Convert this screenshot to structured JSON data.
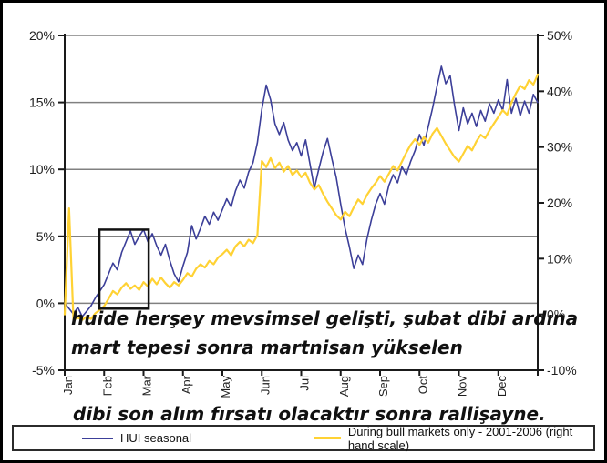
{
  "colors": {
    "blue_series": "#3c3f99",
    "yellow_series": "#ffd234",
    "gridline": "#808080",
    "axis": "#1a1a1a",
    "highlight_box": "#111111",
    "background": "#ffffff"
  },
  "annotations": {
    "line1": "huide herşey mevsimsel gelişti, şubat dibi ardına",
    "line2": "mart tepesi sonra martnisan yükselen",
    "line3": "dibi son alım fırsatı olacaktır sonra rallişayne."
  },
  "legend": {
    "items": [
      {
        "label": "HUI seasonal",
        "color": "#3c3f99"
      },
      {
        "label": "During bull markets only - 2001-2006 (right hand scale)",
        "color": "#ffd234"
      }
    ]
  },
  "chart_data": {
    "type": "line",
    "title": "",
    "xlabel": "",
    "ylabel_left": "",
    "ylabel_right": "",
    "grid": true,
    "legend_position": "bottom",
    "x_categories": [
      "Jan",
      "Feb",
      "Mar",
      "Apr",
      "May",
      "Jun",
      "Jul",
      "Aug",
      "Sep",
      "Oct",
      "Nov",
      "Dec"
    ],
    "left_axis": {
      "tick_labels": [
        "20%",
        "15%",
        "10%",
        "5%",
        "0%",
        "-5%"
      ],
      "tick_values": [
        20,
        15,
        10,
        5,
        0,
        -5
      ],
      "range": [
        -5,
        20
      ]
    },
    "right_axis": {
      "tick_labels": [
        "50%",
        "40%",
        "30%",
        "20%",
        "10%",
        "0%",
        "-10%"
      ],
      "tick_values": [
        50,
        40,
        30,
        20,
        10,
        0,
        -10
      ],
      "range": [
        -10,
        50
      ]
    },
    "points_per_month": 9,
    "series": [
      {
        "name": "HUI seasonal",
        "axis": "left",
        "color": "#3c3f99",
        "stroke_width": 1.6,
        "values": [
          0,
          -0.4,
          -0.8,
          -0.3,
          -1,
          -0.6,
          -0.2,
          0.4,
          0.9,
          1.4,
          2.2,
          3,
          2.5,
          3.8,
          4.6,
          5.4,
          4.4,
          5,
          5.5,
          4.6,
          5.2,
          4.3,
          3.6,
          4.4,
          3.2,
          2.2,
          1.6,
          2.8,
          3.8,
          5.8,
          4.8,
          5.6,
          6.5,
          5.9,
          6.8,
          6.2,
          7,
          7.8,
          7.2,
          8.4,
          9.2,
          8.6,
          9.8,
          10.5,
          12,
          14.5,
          16.3,
          15.2,
          13.4,
          12.6,
          13.5,
          12.2,
          11.4,
          12,
          11,
          12.2,
          10.4,
          8.6,
          10,
          11.3,
          12.3,
          10.8,
          9.4,
          7.4,
          5.6,
          4.2,
          2.6,
          3.6,
          2.9,
          4.8,
          6.2,
          7.4,
          8.2,
          7.4,
          8.8,
          9.6,
          9,
          10.2,
          9.6,
          10.6,
          11.4,
          12.6,
          11.8,
          13.2,
          14.6,
          16.2,
          17.7,
          16.4,
          17,
          14.8,
          12.9,
          14.6,
          13.4,
          14.2,
          13.2,
          14.4,
          13.6,
          14.9,
          14.2,
          15.2,
          14.4,
          16.7,
          14.2,
          15.3,
          14,
          15.1,
          14.2,
          15.6,
          15
        ]
      },
      {
        "name": "During bull markets only - 2001-2006 (right hand scale)",
        "axis": "right",
        "color": "#ffd234",
        "stroke_width": 2.2,
        "values": [
          0,
          19,
          -1,
          -0.6,
          -1,
          -0.4,
          -0.8,
          0.2,
          0.8,
          1.5,
          2.8,
          4.2,
          3.6,
          4.8,
          5.6,
          4.6,
          5.2,
          4.4,
          5.8,
          5,
          6.4,
          5.4,
          6.6,
          5.6,
          4.8,
          5.8,
          5.2,
          6.2,
          7.4,
          6.8,
          8.2,
          9,
          8.4,
          9.6,
          9,
          10.2,
          10.8,
          11.6,
          10.6,
          12.2,
          13,
          12.2,
          13.4,
          12.8,
          14.2,
          27.5,
          26.4,
          28,
          26.2,
          27.2,
          25.6,
          26.6,
          25,
          25.8,
          24.6,
          25.4,
          23.6,
          22.4,
          23.2,
          21.6,
          20.2,
          19,
          17.8,
          17,
          18.4,
          17.6,
          19.2,
          20.6,
          19.8,
          21.4,
          22.6,
          23.6,
          24.8,
          23.8,
          25.2,
          26.6,
          25.8,
          27.4,
          29,
          30.4,
          31.4,
          30.4,
          31.8,
          30.8,
          32.4,
          33.4,
          32,
          30.6,
          29.4,
          28.2,
          27.4,
          28.8,
          30.2,
          29.4,
          31,
          32.2,
          31.6,
          33,
          34.2,
          35.4,
          36.6,
          35.8,
          38,
          39.6,
          41,
          40.4,
          42,
          41.2,
          43
        ]
      }
    ],
    "highlight_box": {
      "x_month_start": 0.88,
      "x_month_end": 2.13,
      "y_left_top": 5.5,
      "y_left_bottom": -0.4
    }
  }
}
